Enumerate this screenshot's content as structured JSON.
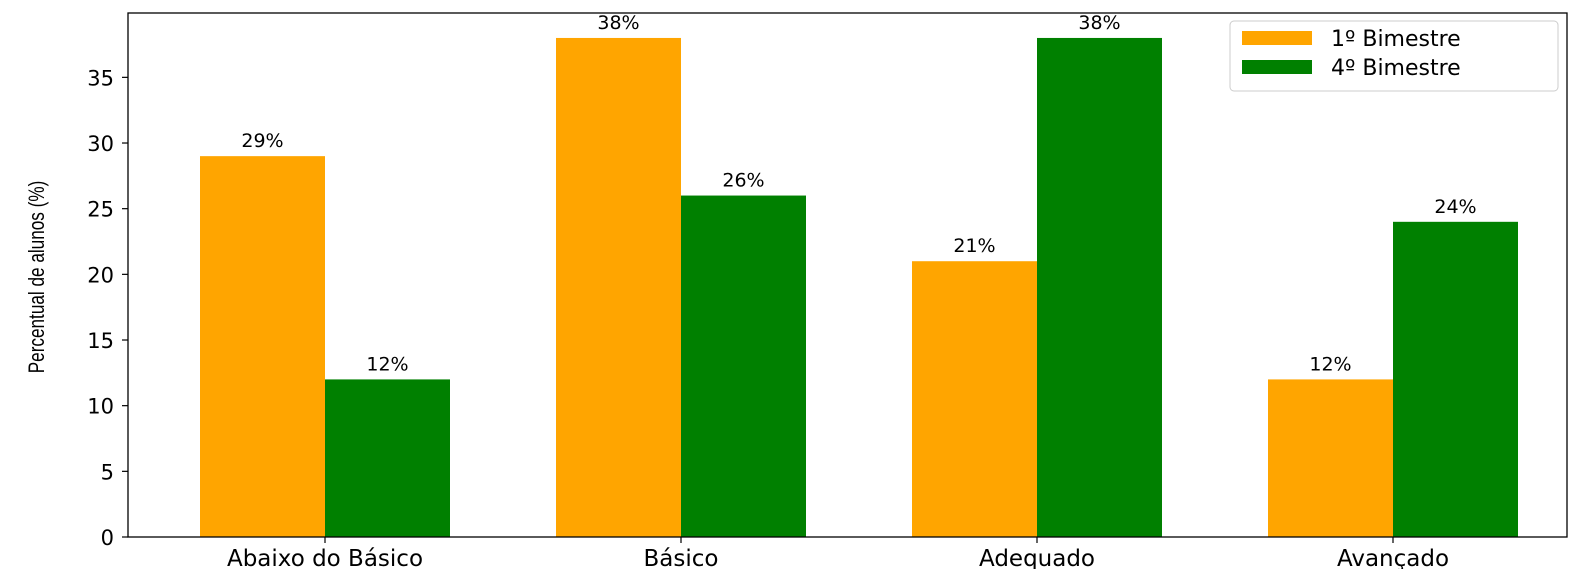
{
  "chart_data": {
    "type": "bar",
    "title": "",
    "xlabel": "",
    "ylabel": "Percentual de alunos (%)",
    "categories": [
      "Abaixo do Básico",
      "Básico",
      "Adequado",
      "Avançado"
    ],
    "series": [
      {
        "name": "1º Bimestre",
        "color": "#FFA500",
        "values": [
          29,
          38,
          21,
          12
        ],
        "labels": [
          "29%",
          "38%",
          "21%",
          "12%"
        ]
      },
      {
        "name": "4º Bimestre",
        "color": "#008000",
        "values": [
          12,
          26,
          38,
          24
        ],
        "labels": [
          "12%",
          "26%",
          "38%",
          "24%"
        ]
      }
    ],
    "ylim": [
      0,
      39.9
    ],
    "yticks": [
      0,
      5,
      10,
      15,
      20,
      25,
      30,
      35
    ],
    "ytick_labels": [
      "0",
      "5",
      "10",
      "15",
      "20",
      "25",
      "30",
      "35"
    ],
    "grid": false,
    "legend_position": "top-right"
  }
}
